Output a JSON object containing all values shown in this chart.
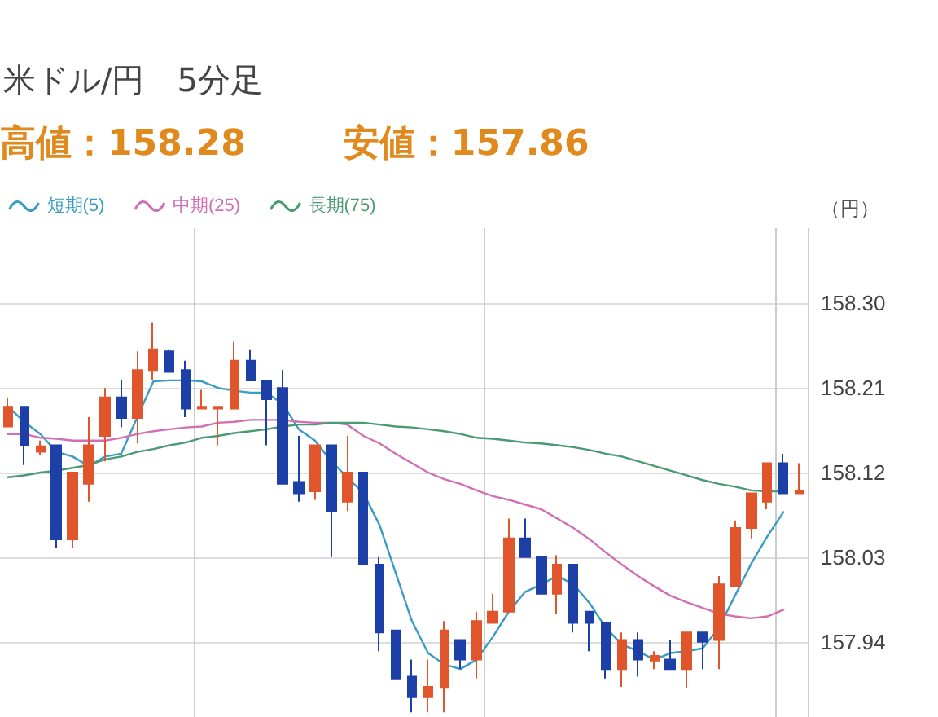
{
  "chart_data": {
    "type": "candlestick",
    "title": "米ドル/円　5分足",
    "annotations": [
      "高値：158.28",
      "安値：157.86"
    ],
    "ylabel": "（円）",
    "categories": [
      null,
      null,
      null,
      null,
      null,
      null,
      null,
      null,
      null,
      null,
      null,
      null,
      null,
      null,
      null,
      null,
      null,
      null,
      null,
      null,
      null,
      null,
      null,
      null,
      null,
      null,
      null,
      null,
      null,
      null,
      null,
      null,
      null,
      null,
      null,
      null,
      null,
      null,
      null,
      null,
      null,
      null,
      null,
      null,
      null,
      null,
      null,
      null,
      null,
      null
    ],
    "ohlc": [
      [
        158.169,
        158.2,
        158.169,
        158.19
      ],
      [
        158.19,
        158.19,
        158.128,
        158.149
      ],
      [
        158.142,
        158.154,
        158.139,
        158.148
      ],
      [
        158.149,
        158.149,
        158.04,
        158.049
      ],
      [
        158.049,
        158.12,
        158.04,
        158.12
      ],
      [
        158.108,
        158.179,
        158.089,
        158.149
      ],
      [
        158.159,
        158.21,
        158.132,
        158.2
      ],
      [
        158.2,
        158.218,
        158.168,
        158.178
      ],
      [
        158.178,
        158.249,
        158.151,
        158.229
      ],
      [
        158.229,
        158.28,
        158.218,
        158.251
      ],
      [
        158.249,
        158.251,
        158.227,
        158.227
      ],
      [
        158.229,
        158.239,
        158.179,
        158.188
      ],
      [
        158.188,
        158.208,
        158.188,
        158.19
      ],
      [
        158.188,
        158.19,
        158.149,
        158.19
      ],
      [
        158.188,
        158.259,
        158.188,
        158.239
      ],
      [
        158.239,
        158.251,
        158.218,
        158.218
      ],
      [
        158.218,
        158.218,
        158.149,
        158.198
      ],
      [
        158.21,
        158.229,
        158.108,
        158.108
      ],
      [
        158.11,
        158.159,
        158.089,
        158.098
      ],
      [
        158.1,
        158.149,
        158.091,
        158.149
      ],
      [
        158.149,
        158.149,
        158.03,
        158.079
      ],
      [
        158.089,
        158.159,
        158.079,
        158.12
      ],
      [
        158.12,
        158.12,
        158.022,
        158.022
      ],
      [
        158.022,
        158.03,
        157.93,
        157.95
      ],
      [
        157.952,
        157.952,
        157.901,
        157.901
      ],
      [
        157.903,
        157.921,
        157.865,
        157.881
      ],
      [
        157.881,
        157.921,
        157.865,
        157.892
      ],
      [
        157.891,
        157.962,
        157.865,
        157.952
      ],
      [
        157.942,
        157.942,
        157.911,
        157.921
      ],
      [
        157.921,
        157.972,
        157.901,
        157.962
      ],
      [
        157.96,
        157.991,
        157.96,
        157.972
      ],
      [
        157.972,
        158.071,
        157.972,
        158.05
      ],
      [
        158.05,
        158.071,
        158.03,
        158.03
      ],
      [
        158.03,
        158.03,
        157.991,
        157.991
      ],
      [
        157.991,
        158.032,
        157.97,
        158.022
      ],
      [
        158.022,
        158.022,
        157.95,
        157.96
      ],
      [
        157.972,
        157.972,
        157.93,
        157.96
      ],
      [
        157.96,
        157.96,
        157.901,
        157.911
      ],
      [
        157.911,
        157.95,
        157.892,
        157.942
      ],
      [
        157.942,
        157.95,
        157.903,
        157.921
      ],
      [
        157.92,
        157.93,
        157.911,
        157.925
      ],
      [
        157.921,
        157.942,
        157.911,
        157.911
      ],
      [
        157.911,
        157.95,
        157.891,
        157.95
      ],
      [
        157.95,
        157.95,
        157.911,
        157.94
      ],
      [
        157.942,
        158.01,
        157.911,
        158.001
      ],
      [
        157.999,
        158.069,
        157.999,
        158.061
      ],
      [
        158.061,
        158.098,
        158.05,
        158.098
      ],
      [
        158.089,
        158.13,
        158.081,
        158.13
      ],
      [
        158.13,
        158.14,
        158.098,
        158.098
      ],
      [
        158.098,
        158.13,
        158.098,
        158.1
      ]
    ],
    "colors": [
      "#e0552b",
      "#1c3fa8",
      "#e0552b",
      "#1c3fa8",
      "#e0552b",
      "#e0552b",
      "#e0552b",
      "#1c3fa8",
      "#e0552b",
      "#e0552b",
      "#1c3fa8",
      "#1c3fa8",
      "#e0552b",
      "#e0552b",
      "#e0552b",
      "#1c3fa8",
      "#1c3fa8",
      "#1c3fa8",
      "#1c3fa8",
      "#e0552b",
      "#1c3fa8",
      "#e0552b",
      "#1c3fa8",
      "#1c3fa8",
      "#1c3fa8",
      "#1c3fa8",
      "#e0552b",
      "#e0552b",
      "#1c3fa8",
      "#e0552b",
      "#e0552b",
      "#e0552b",
      "#1c3fa8",
      "#1c3fa8",
      "#e0552b",
      "#1c3fa8",
      "#1c3fa8",
      "#1c3fa8",
      "#e0552b",
      "#1c3fa8",
      "#e0552b",
      "#1c3fa8",
      "#e0552b",
      "#1c3fa8",
      "#e0552b",
      "#e0552b",
      "#e0552b",
      "#e0552b",
      "#1c3fa8",
      "#e0552b"
    ],
    "series": [
      {
        "name": "短期(5)",
        "type": "line",
        "color": "#3a9cc4",
        "values": [
          158.19,
          158.174,
          158.161,
          158.142,
          158.137,
          158.127,
          158.137,
          158.14,
          158.179,
          158.217,
          158.218,
          158.218,
          158.217,
          158.21,
          158.207,
          158.205,
          158.205,
          158.193,
          158.166,
          158.154,
          158.132,
          158.115,
          158.098,
          158.064,
          158.013,
          157.962,
          157.928,
          157.916,
          157.911,
          157.921,
          157.945,
          157.972,
          157.993,
          158.001,
          158.01,
          158.001,
          157.981,
          157.955,
          157.937,
          157.93,
          157.921,
          157.928,
          157.93,
          157.933,
          157.955,
          157.989,
          158.023,
          158.052,
          158.078,
          null
        ]
      },
      {
        "name": "中期(25)",
        "type": "line",
        "color": "#d070b4",
        "values": [
          158.161,
          158.161,
          158.157,
          158.156,
          158.154,
          158.154,
          158.154,
          158.157,
          158.161,
          158.164,
          158.166,
          158.168,
          158.169,
          158.173,
          158.174,
          158.176,
          158.176,
          158.176,
          158.174,
          158.173,
          158.173,
          158.171,
          158.159,
          158.151,
          158.14,
          158.13,
          158.12,
          158.113,
          158.108,
          158.101,
          158.095,
          158.091,
          158.086,
          158.081,
          158.071,
          158.061,
          158.049,
          158.035,
          158.022,
          158.01,
          157.999,
          157.989,
          157.982,
          157.976,
          157.97,
          157.967,
          157.965,
          157.967,
          157.974,
          null
        ]
      },
      {
        "name": "長期(75)",
        "type": "line",
        "color": "#4a9a72",
        "values": [
          158.115,
          158.117,
          158.12,
          158.122,
          158.125,
          158.128,
          158.134,
          158.137,
          158.142,
          158.145,
          158.149,
          158.152,
          158.157,
          158.159,
          158.162,
          158.164,
          158.166,
          158.169,
          158.171,
          158.171,
          158.173,
          158.173,
          158.173,
          158.171,
          158.169,
          158.168,
          158.166,
          158.164,
          158.161,
          158.157,
          158.156,
          158.154,
          158.152,
          158.151,
          158.149,
          158.147,
          158.144,
          158.14,
          158.137,
          158.132,
          158.127,
          158.122,
          158.117,
          158.112,
          158.108,
          158.105,
          158.101,
          158.1,
          158.1,
          null
        ]
      }
    ],
    "ylim": [
      157.86,
      158.38
    ],
    "yticks": [
      {
        "value": 157.94,
        "label": "157.94"
      },
      {
        "value": 158.03,
        "label": "158.03"
      },
      {
        "value": 158.12,
        "label": "158.12"
      },
      {
        "value": 158.21,
        "label": "158.21"
      },
      {
        "value": 158.3,
        "label": "158.30"
      }
    ],
    "grid": "y",
    "legend": "top left",
    "tick_labels": "y",
    "marker": "none",
    "line_style": "solid"
  }
}
